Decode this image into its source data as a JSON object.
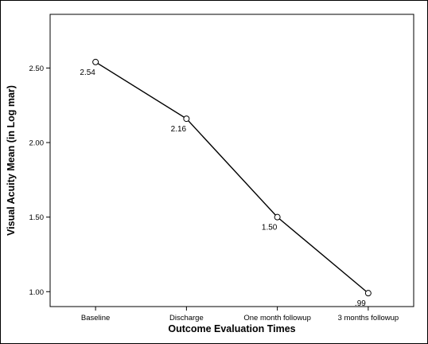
{
  "chart_data": {
    "type": "line",
    "title": "",
    "xlabel": "Outcome Evaluation Times",
    "ylabel": "Visual Acuity Mean (in Log mar)",
    "categories": [
      "Baseline",
      "Discharge",
      "One month followup",
      "3 months followup"
    ],
    "series": [
      {
        "values": [
          2.54,
          2.16,
          1.5,
          0.99
        ],
        "labels": [
          "2.54",
          "2.16",
          "1.50",
          ".99"
        ]
      }
    ],
    "yticks": [
      1.0,
      1.5,
      2.0,
      2.5
    ],
    "ytick_labels": [
      "1.00",
      "1.50",
      "2.00",
      "2.50"
    ],
    "ylim": [
      0.9,
      2.86
    ],
    "grid": false,
    "legend": "none",
    "line_color": "#000000",
    "marker": "open-circle"
  }
}
